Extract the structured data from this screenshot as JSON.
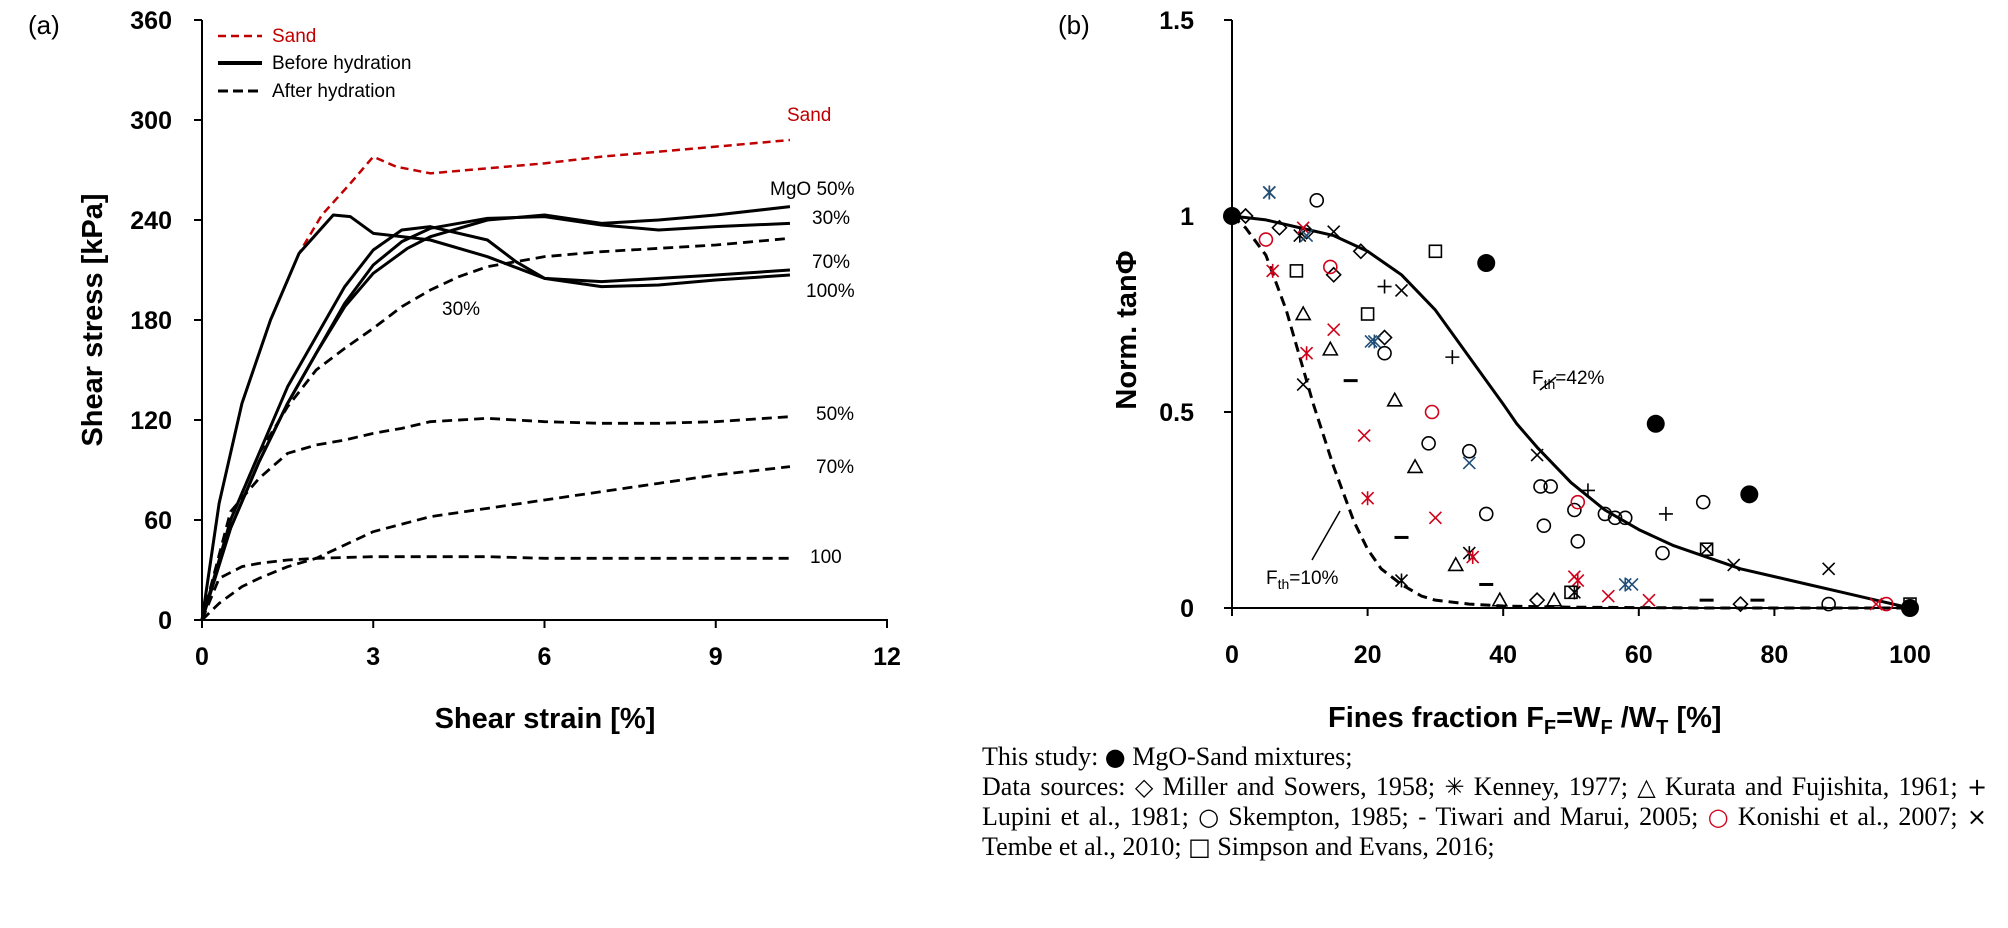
{
  "panel_a": {
    "label": "(a)",
    "legend": [
      "Sand",
      "Before hydration",
      "After hydration"
    ],
    "curve_labels": {
      "sand": "Sand",
      "mgo50": "MgO 50%",
      "b30": "30%",
      "a70": "70%",
      "b100": "100%",
      "a30": "30%",
      "a50": "50%",
      "a70b": "70%",
      "a100": "100"
    }
  },
  "panel_b": {
    "label": "(b)",
    "annotations": {
      "fth42_main": "F",
      "fth42_sub": "th",
      "fth42_rest": "=42%",
      "fth10_main": "F",
      "fth10_sub": "th",
      "fth10_rest": "=10%"
    }
  },
  "caption": {
    "line1_prefix": "This study:",
    "line1_suffix": "MgO-Sand mixtures;",
    "data_prefix": "Data sources:",
    "sources": [
      {
        "symbol": "◇",
        "text": "Miller and Sowers, 1958;",
        "color": "#000000"
      },
      {
        "symbol": "✳",
        "text": "Kenney, 1977;",
        "color": "#000000"
      },
      {
        "symbol": "△",
        "text": "Kurata and Fujishita, 1961;",
        "color": "#000000"
      },
      {
        "symbol": "+",
        "text": "Lupini et al., 1981;",
        "color": "#000000"
      },
      {
        "symbol": "○",
        "text": "Skempton, 1985;",
        "color": "#000000"
      },
      {
        "symbol": "-",
        "text": "Tiwari and Marui, 2005;",
        "color": "#000000"
      },
      {
        "symbol": "○",
        "text": "Konishi et al., 2007;",
        "color": "#d0021b"
      },
      {
        "symbol": "×",
        "text": "Tembe et al., 2010;",
        "color": "#000000"
      },
      {
        "symbol": "□",
        "text": "Simpson and Evans, 2016;",
        "color": "#000000"
      }
    ]
  },
  "chart_data": [
    {
      "type": "line",
      "title": "",
      "xlabel": "Shear strain [%]",
      "ylabel": "Shear stress [kPa]",
      "xlim": [
        0,
        12
      ],
      "ylim": [
        0,
        360
      ],
      "xticks": [
        "0",
        "3",
        "6",
        "9",
        "12"
      ],
      "yticks": [
        "0",
        "60",
        "120",
        "180",
        "240",
        "300",
        "360"
      ],
      "grid": false,
      "legend_position": "top-left",
      "series": [
        {
          "name": "Sand",
          "style": "dashed",
          "color": "#c00000",
          "x": [
            0,
            0.3,
            0.7,
            1.2,
            1.7,
            2.1,
            2.6,
            3.0,
            3.4,
            4.0,
            5.0,
            6.0,
            7.0,
            8.0,
            9.0,
            10.3
          ],
          "y": [
            0,
            70,
            130,
            180,
            220,
            243,
            262,
            278,
            272,
            268,
            271,
            274,
            278,
            281,
            284,
            288
          ]
        },
        {
          "name": "Before hydration — MgO 50%",
          "style": "solid",
          "color": "#000000",
          "x": [
            0,
            0.3,
            0.7,
            1.2,
            1.7,
            2.3,
            2.6,
            3.0,
            3.5,
            4.0,
            5.0,
            6.0,
            7.0,
            8.0,
            9.0,
            10.3
          ],
          "y": [
            0,
            70,
            130,
            180,
            220,
            243,
            242,
            232,
            230,
            228,
            218,
            205,
            203,
            205,
            207,
            210
          ]
        },
        {
          "name": "Before hydration — 30%",
          "style": "solid",
          "color": "#000000",
          "x": [
            0,
            0.5,
            1.0,
            1.5,
            2.0,
            2.5,
            3.0,
            3.6,
            4.0,
            5.0,
            6.0,
            7.0,
            8.0,
            9.0,
            10.3
          ],
          "y": [
            0,
            55,
            95,
            130,
            160,
            188,
            208,
            223,
            230,
            240,
            243,
            238,
            240,
            243,
            248
          ]
        },
        {
          "name": "Before hydration — 70%",
          "style": "solid",
          "color": "#000000",
          "x": [
            0,
            0.5,
            1.0,
            1.5,
            2.0,
            2.5,
            3.0,
            3.5,
            4.0,
            5.0,
            6.0,
            7.0,
            8.0,
            9.0,
            10.3
          ],
          "y": [
            0,
            55,
            95,
            130,
            160,
            190,
            213,
            227,
            235,
            241,
            242,
            237,
            234,
            236,
            238
          ]
        },
        {
          "name": "Before hydration — 100%",
          "style": "solid",
          "color": "#000000",
          "x": [
            0,
            0.5,
            1.0,
            1.5,
            2.0,
            2.5,
            3.0,
            3.5,
            4.0,
            5.0,
            5.5,
            6.0,
            7.0,
            8.0,
            9.0,
            10.3
          ],
          "y": [
            0,
            60,
            100,
            140,
            170,
            200,
            222,
            234,
            236,
            228,
            215,
            205,
            200,
            201,
            204,
            207
          ]
        },
        {
          "name": "After hydration — 30%",
          "style": "dashed",
          "color": "#000000",
          "x": [
            0,
            0.5,
            1.0,
            1.5,
            2.0,
            2.5,
            3.0,
            3.5,
            4.0,
            4.5,
            5.0,
            6.0,
            7.0,
            8.0,
            9.0,
            10.3
          ],
          "y": [
            0,
            60,
            100,
            128,
            150,
            163,
            175,
            188,
            198,
            206,
            212,
            218,
            221,
            223,
            225,
            229
          ]
        },
        {
          "name": "After hydration — 50%",
          "style": "dashed",
          "color": "#000000",
          "x": [
            0,
            0.5,
            1.0,
            1.5,
            2.0,
            2.5,
            3.0,
            3.5,
            4.0,
            5.0,
            6.0,
            7.0,
            8.0,
            9.0,
            10.3
          ],
          "y": [
            0,
            65,
            85,
            100,
            105,
            108,
            112,
            115,
            119,
            121,
            119,
            118,
            118,
            119,
            122
          ]
        },
        {
          "name": "After hydration — 70%",
          "style": "dashed",
          "color": "#000000",
          "x": [
            0,
            0.3,
            0.7,
            1.0,
            1.5,
            2.0,
            2.5,
            3.0,
            4.0,
            5.0,
            6.0,
            7.0,
            8.0,
            9.0,
            10.3
          ],
          "y": [
            0,
            10,
            20,
            25,
            32,
            37,
            45,
            53,
            62,
            67,
            72,
            77,
            82,
            87,
            92
          ]
        },
        {
          "name": "After hydration — 100",
          "style": "dashed",
          "color": "#000000",
          "x": [
            0,
            0.3,
            0.7,
            1.0,
            1.5,
            2.0,
            3.0,
            4.0,
            5.0,
            6.0,
            7.0,
            8.0,
            9.0,
            10.3
          ],
          "y": [
            0,
            25,
            32,
            34,
            36,
            37,
            38,
            38,
            38,
            37,
            37,
            37,
            37,
            37
          ]
        }
      ]
    },
    {
      "type": "scatter",
      "title": "",
      "xlabel": "Fines fraction F",
      "xlabel_parts": {
        "main1": "Fines fraction F",
        "sub1": "F",
        "mid": "=W",
        "sub2": "F",
        "slash": " /W",
        "sub3": "T",
        "tail": " [%]"
      },
      "ylabel": "Norm. tanΦ",
      "xlim": [
        0,
        100
      ],
      "ylim": [
        0,
        1.5
      ],
      "xticks": [
        "0",
        "20",
        "40",
        "60",
        "80",
        "100"
      ],
      "yticks": [
        "0",
        "0.5",
        "1",
        "1.5"
      ],
      "grid": false,
      "curves": [
        {
          "name": "Fth=42%",
          "style": "solid",
          "x": [
            0,
            5,
            10,
            15,
            20,
            25,
            30,
            35,
            40,
            42,
            45,
            50,
            55,
            60,
            65,
            70,
            75,
            80,
            85,
            90,
            95,
            100
          ],
          "y": [
            1,
            0.99,
            0.97,
            0.95,
            0.91,
            0.85,
            0.76,
            0.64,
            0.52,
            0.47,
            0.41,
            0.32,
            0.25,
            0.2,
            0.16,
            0.13,
            0.1,
            0.08,
            0.06,
            0.04,
            0.02,
            0
          ]
        },
        {
          "name": "Fth=10%",
          "style": "dashed",
          "x": [
            0,
            2,
            5,
            8,
            10,
            12,
            15,
            18,
            20,
            22,
            25,
            28,
            30,
            35,
            40,
            50,
            60,
            70,
            80,
            90,
            100
          ],
          "y": [
            1,
            0.97,
            0.9,
            0.76,
            0.64,
            0.52,
            0.36,
            0.22,
            0.15,
            0.1,
            0.06,
            0.03,
            0.02,
            0.01,
            0.005,
            0.002,
            0.001,
            0,
            0,
            0,
            0
          ]
        }
      ],
      "series": [
        {
          "name": "MgO-Sand mixtures",
          "marker": "filled-circle",
          "color": "#000000",
          "x": [
            0,
            37.5,
            62.5,
            76.3,
            100
          ],
          "y": [
            1,
            0.88,
            0.47,
            0.29,
            0
          ]
        },
        {
          "name": "Miller and Sowers, 1958",
          "marker": "diamond",
          "color": "#000000",
          "x": [
            2,
            7,
            11,
            15,
            19,
            22.5,
            45,
            75
          ],
          "y": [
            1,
            0.97,
            0.96,
            0.85,
            0.91,
            0.69,
            0.02,
            0.01
          ]
        },
        {
          "name": "Kenney, 1977",
          "marker": "asterisk",
          "color": "#000000",
          "x": [
            5.5,
            10,
            25,
            35,
            50.5
          ],
          "y": [
            1.06,
            0.95,
            0.07,
            0.14,
            0.04
          ]
        },
        {
          "name": "Kenney, 1977 (blue)",
          "marker": "asterisk",
          "color": "#1f4e79",
          "x": [
            5.5,
            21,
            58
          ],
          "y": [
            1.06,
            0.68,
            0.06
          ]
        },
        {
          "name": "Kenney, 1977 (red)",
          "marker": "asterisk",
          "color": "#d0021b",
          "x": [
            6,
            11,
            20,
            35.5,
            51
          ],
          "y": [
            0.86,
            0.65,
            0.28,
            0.13,
            0.07
          ]
        },
        {
          "name": "Kurata and Fujishita, 1961",
          "marker": "triangle",
          "color": "#000000",
          "x": [
            10.5,
            14.5,
            24,
            27,
            33,
            39.5,
            47.5
          ],
          "y": [
            0.75,
            0.66,
            0.53,
            0.36,
            0.11,
            0.02,
            0.02
          ]
        },
        {
          "name": "Lupini et al., 1981",
          "marker": "plus",
          "color": "#000000",
          "x": [
            22.5,
            32.5,
            52.5,
            64
          ],
          "y": [
            0.82,
            0.64,
            0.3,
            0.24
          ]
        },
        {
          "name": "Skempton, 1985",
          "marker": "circle",
          "color": "#000000",
          "x": [
            12.5,
            22.5,
            29,
            35,
            37.5,
            45.5,
            47,
            46,
            50.5,
            51,
            55,
            56.5,
            58,
            63.5,
            69.5,
            88
          ],
          "y": [
            1.04,
            0.65,
            0.42,
            0.4,
            0.24,
            0.31,
            0.31,
            0.21,
            0.25,
            0.17,
            0.24,
            0.23,
            0.23,
            0.14,
            0.27,
            0.01
          ]
        },
        {
          "name": "Tiwari and Marui, 2005",
          "marker": "dash",
          "color": "#000000",
          "x": [
            17.5,
            25,
            37.5,
            70,
            77.5
          ],
          "y": [
            0.58,
            0.18,
            0.06,
            0.02,
            0.02
          ]
        },
        {
          "name": "Konishi et al., 2007",
          "marker": "circle",
          "color": "#d0021b",
          "x": [
            5,
            14.5,
            29.5,
            51,
            96.5
          ],
          "y": [
            0.94,
            0.87,
            0.5,
            0.27,
            0.01
          ]
        },
        {
          "name": "Tembe et al., 2010",
          "marker": "cross",
          "color": "#000000",
          "x": [
            10.5,
            15,
            25,
            45,
            70,
            74,
            88
          ],
          "y": [
            0.57,
            0.96,
            0.81,
            0.39,
            0.15,
            0.11,
            0.1
          ]
        },
        {
          "name": "Tembe et al., 2010 (red)",
          "marker": "cross",
          "color": "#d0021b",
          "x": [
            10.5,
            15,
            19.5,
            30,
            50.5,
            55.5,
            61.5,
            95
          ],
          "y": [
            0.97,
            0.71,
            0.44,
            0.23,
            0.08,
            0.03,
            0.02,
            0.01
          ]
        },
        {
          "name": "Tembe et al., 2010 (blue)",
          "marker": "cross",
          "color": "#1f4e79",
          "x": [
            11,
            20.5,
            35,
            59
          ],
          "y": [
            0.95,
            0.68,
            0.37,
            0.06
          ]
        },
        {
          "name": "Simpson and Evans, 2016",
          "marker": "square",
          "color": "#000000",
          "x": [
            9.5,
            20,
            30,
            50,
            70,
            100
          ],
          "y": [
            0.86,
            0.75,
            0.91,
            0.04,
            0.15,
            0.01
          ]
        }
      ]
    }
  ]
}
